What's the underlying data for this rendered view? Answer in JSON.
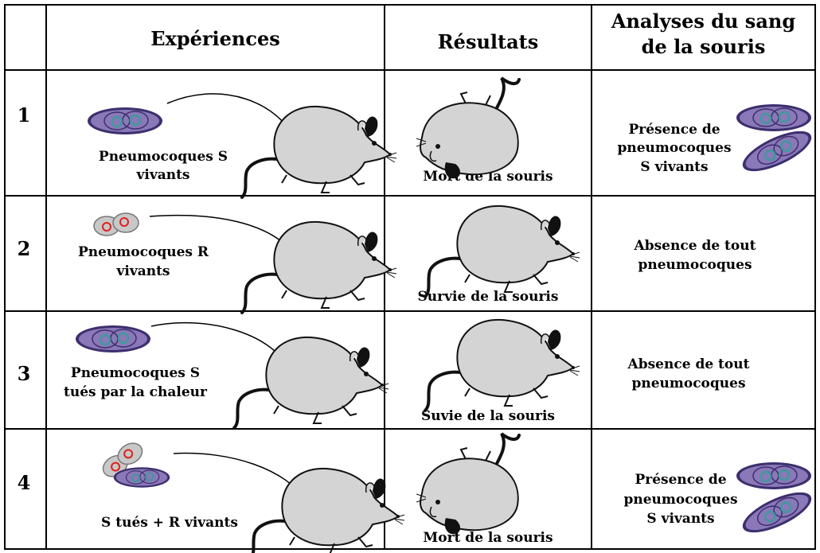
{
  "header": {
    "experiences": "Expériences",
    "resultats": "Résultats",
    "analyses_line1": "Analyses du sang",
    "analyses_line2": "de la souris"
  },
  "rows": [
    {
      "number": "1",
      "experience_line1": "Pneumocoques S",
      "experience_line2": "vivants",
      "resultat": "Mort de la souris",
      "analyse_line1": "Présence de",
      "analyse_line2": "pneumocoques",
      "analyse_line3": "S vivants"
    },
    {
      "number": "2",
      "experience_line1": "Pneumocoques R",
      "experience_line2": "vivants",
      "resultat": "Survie de la souris",
      "analyse_line1": "Absence de tout",
      "analyse_line2": "pneumocoques"
    },
    {
      "number": "3",
      "experience_line1": "Pneumocoques S",
      "experience_line2": "tués par la chaleur",
      "resultat": "Suvie de la souris",
      "analyse_line1": "Absence de tout",
      "analyse_line2": "pneumocoques"
    },
    {
      "number": "4",
      "experience_line1": "S tués + R vivants",
      "resultat": "Mort de la souris",
      "analyse_line1": "Présence de",
      "analyse_line2": "pneumocoques",
      "analyse_line3": "S vivants"
    }
  ],
  "colors": {
    "s_cell_fill": "#8a78b8",
    "s_cell_dark": "#3d2f6e",
    "s_cell_nucleus": "#3f9a9a",
    "r_cell_fill": "#c8c8c8",
    "r_cell_nucleus": "#e02020",
    "mouse_body": "#d4d4d4",
    "mouse_dark": "#111111"
  }
}
